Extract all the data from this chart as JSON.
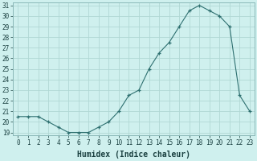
{
  "x": [
    0,
    1,
    2,
    3,
    4,
    5,
    6,
    7,
    8,
    9,
    10,
    11,
    12,
    13,
    14,
    15,
    16,
    17,
    18,
    19,
    20,
    21,
    22,
    23
  ],
  "y": [
    20.5,
    20.5,
    20.5,
    20.0,
    19.5,
    19.0,
    19.0,
    19.0,
    19.5,
    20.0,
    21.0,
    22.5,
    23.0,
    25.0,
    26.5,
    27.5,
    29.0,
    30.5,
    31.0,
    30.5,
    30.0,
    29.0,
    22.5,
    21.0
  ],
  "xlabel": "Humidex (Indice chaleur)",
  "ylim_min": 19,
  "ylim_max": 31,
  "xlim_min": -0.5,
  "xlim_max": 23.5,
  "yticks": [
    19,
    20,
    21,
    22,
    23,
    24,
    25,
    26,
    27,
    28,
    29,
    30,
    31
  ],
  "xticks": [
    0,
    1,
    2,
    3,
    4,
    5,
    6,
    7,
    8,
    9,
    10,
    11,
    12,
    13,
    14,
    15,
    16,
    17,
    18,
    19,
    20,
    21,
    22,
    23
  ],
  "line_color": "#2e7070",
  "bg_color": "#cff0ee",
  "grid_color": "#b0d8d4",
  "border_color": "#8ab8b8",
  "font_color": "#1a4040",
  "tick_fontsize": 5.5,
  "xlabel_fontsize": 7.0
}
